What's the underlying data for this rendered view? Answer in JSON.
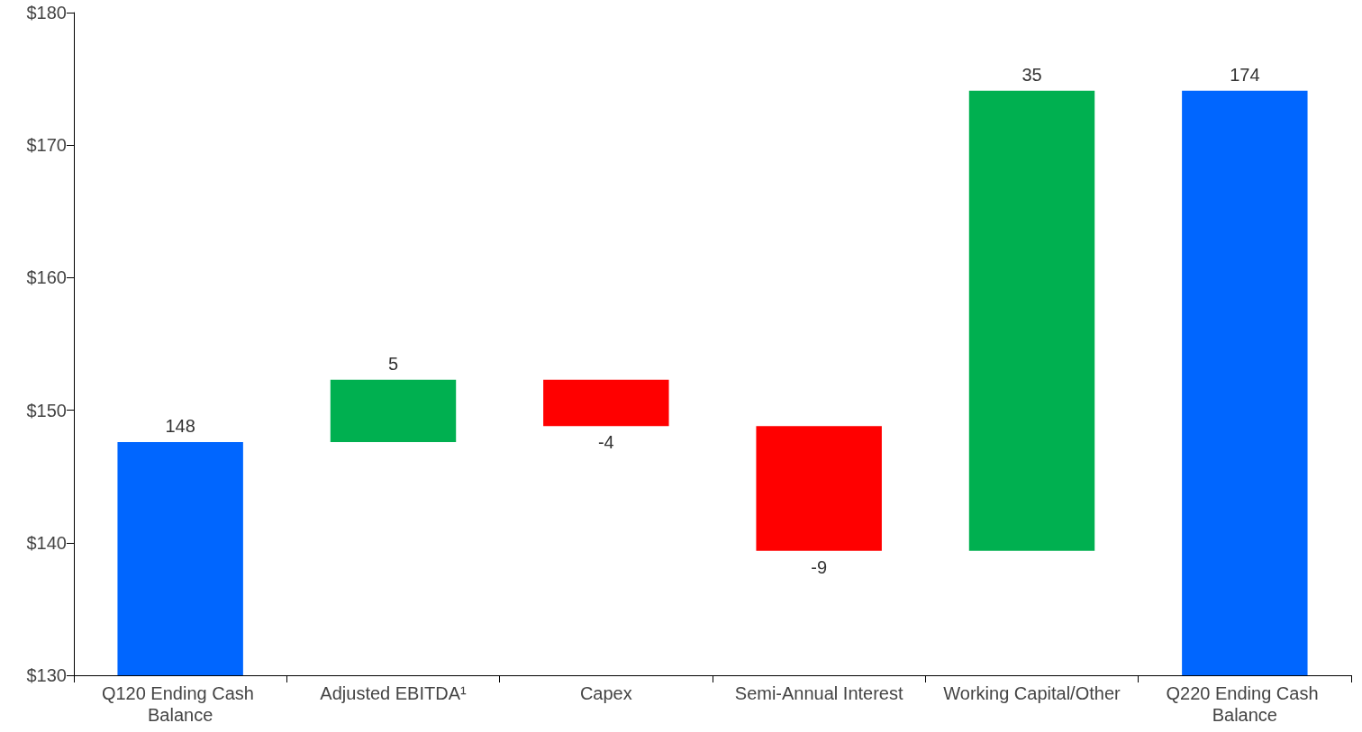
{
  "chart_data": {
    "type": "bar",
    "categories": [
      "Q120 Ending Cash Balance",
      "Adjusted EBITDA¹",
      "Capex",
      "Semi-Annual Interest",
      "Working Capital/Other",
      "Q220 Ending Cash Balance"
    ],
    "values": [
      147.6,
      4.7,
      -3.5,
      -9.4,
      34.7,
      174.1
    ],
    "base": [
      null,
      147.6,
      152.3,
      148.8,
      139.4,
      null
    ],
    "colors": [
      "#0066ff",
      "#00b050",
      "#ff0000",
      "#ff0000",
      "#00b050",
      "#0066ff"
    ],
    "value_labels": [
      "148",
      "5",
      "-4",
      "-9",
      "35",
      "174"
    ],
    "ylim": [
      130,
      180
    ],
    "yticks": [
      {
        "value": 130,
        "label": "$130"
      },
      {
        "value": 140,
        "label": "$140"
      },
      {
        "value": 150,
        "label": "$150"
      },
      {
        "value": 160,
        "label": "$160"
      },
      {
        "value": 170,
        "label": "$170"
      },
      {
        "value": 180,
        "label": "$180"
      }
    ],
    "grid": false
  }
}
